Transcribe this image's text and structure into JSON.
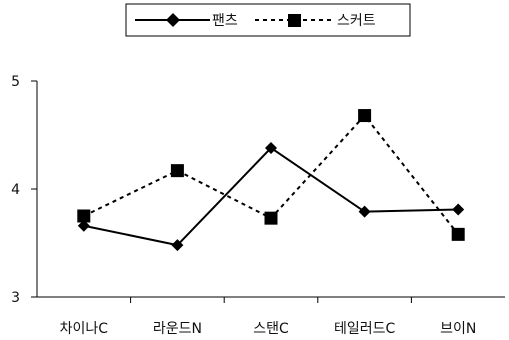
{
  "chart_data": {
    "type": "line",
    "categories": [
      "차이나C",
      "라운드N",
      "스탠C",
      "테일러드C",
      "브이N"
    ],
    "series": [
      {
        "name": "팬츠",
        "values": [
          3.66,
          3.48,
          4.38,
          3.79,
          3.81
        ],
        "line_style": "solid",
        "marker": "diamond"
      },
      {
        "name": "스커트",
        "values": [
          3.75,
          4.17,
          3.73,
          4.68,
          3.58
        ],
        "line_style": "dotted",
        "marker": "square"
      }
    ],
    "ylim": [
      3,
      5
    ],
    "yticks": [
      "3",
      "4",
      "5"
    ],
    "grid": false,
    "legend_position": "top",
    "colors": {
      "line": "#000000",
      "marker": "#000000"
    }
  }
}
